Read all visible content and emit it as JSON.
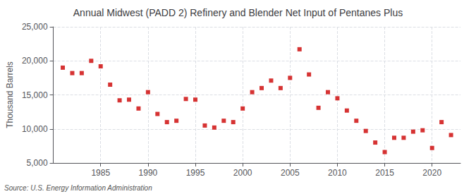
{
  "chart_data": {
    "type": "scatter",
    "title": "Annual Midwest (PADD 2) Refinery and Blender Net Input of Pentanes Plus",
    "ylabel": "Thousand Barrels",
    "annotations": [
      "Source: U.S. Energy Information Administration"
    ],
    "x": [
      1981,
      1982,
      1983,
      1984,
      1985,
      1986,
      1987,
      1988,
      1989,
      1990,
      1991,
      1992,
      1993,
      1994,
      1995,
      1996,
      1997,
      1998,
      1999,
      2000,
      2001,
      2002,
      2003,
      2004,
      2005,
      2006,
      2007,
      2008,
      2009,
      2010,
      2011,
      2012,
      2013,
      2014,
      2015,
      2016,
      2017,
      2018,
      2019,
      2020,
      2021,
      2022
    ],
    "values": [
      19000,
      18200,
      18200,
      20000,
      19200,
      16500,
      14200,
      14300,
      13000,
      15400,
      12200,
      11000,
      11200,
      14400,
      14300,
      10500,
      10200,
      11200,
      11000,
      13000,
      15400,
      16000,
      17100,
      16000,
      17500,
      21700,
      18000,
      13100,
      15400,
      14500,
      12700,
      11200,
      9700,
      8000,
      6600,
      8700,
      8700,
      9600,
      9800,
      7200,
      11000,
      9100
    ],
    "color": "#cc0000",
    "marker": "square",
    "xlim": [
      1980,
      2023
    ],
    "xticks": [
      1985,
      1990,
      1995,
      2000,
      2005,
      2010,
      2015,
      2020
    ],
    "ylim": [
      5000,
      25000
    ],
    "yticks": [
      {
        "value": 5000,
        "label": "5,000"
      },
      {
        "value": 10000,
        "label": "10,000"
      },
      {
        "value": 15000,
        "label": "15,000"
      },
      {
        "value": 20000,
        "label": "20,000"
      },
      {
        "value": 25000,
        "label": "25,000"
      }
    ],
    "grid": true
  }
}
